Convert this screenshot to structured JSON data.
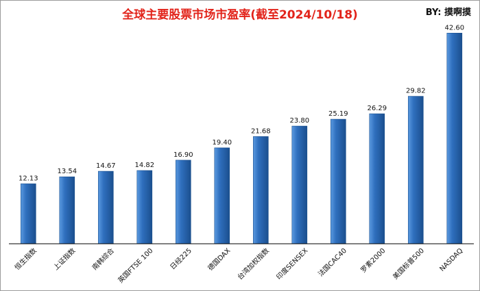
{
  "header": {
    "title": "全球主要股票市场市盈率(截至2024/10/18)",
    "credit": "BY: 摸啊摸"
  },
  "colors": {
    "title": "#e2231a",
    "bar_light": "#5b9ae0",
    "bar_mid": "#2f6fbe",
    "bar_dark": "#1b4f8e",
    "axis": "#000000"
  },
  "chart_data": {
    "type": "bar",
    "title": "全球主要股票市场市盈率(截至2024/10/18)",
    "categories": [
      "恒生指数",
      "上证指数",
      "南韩综合",
      "英国FTSE 100",
      "日经225",
      "德国DAX",
      "台湾加权指数",
      "印度SENSEX",
      "法国CAC40",
      "罗素2000",
      "美国标普500",
      "NASDAQ"
    ],
    "values": [
      12.13,
      13.54,
      14.67,
      14.82,
      16.9,
      19.4,
      21.68,
      23.8,
      25.19,
      26.29,
      29.82,
      42.6
    ],
    "value_labels": [
      "12.13",
      "13.54",
      "14.67",
      "14.82",
      "16.90",
      "19.40",
      "21.68",
      "23.80",
      "25.19",
      "26.29",
      "29.82",
      "42.60"
    ],
    "xlabel": "",
    "ylabel": "",
    "ylim": [
      0,
      45
    ],
    "grid": false,
    "legend": "none"
  }
}
